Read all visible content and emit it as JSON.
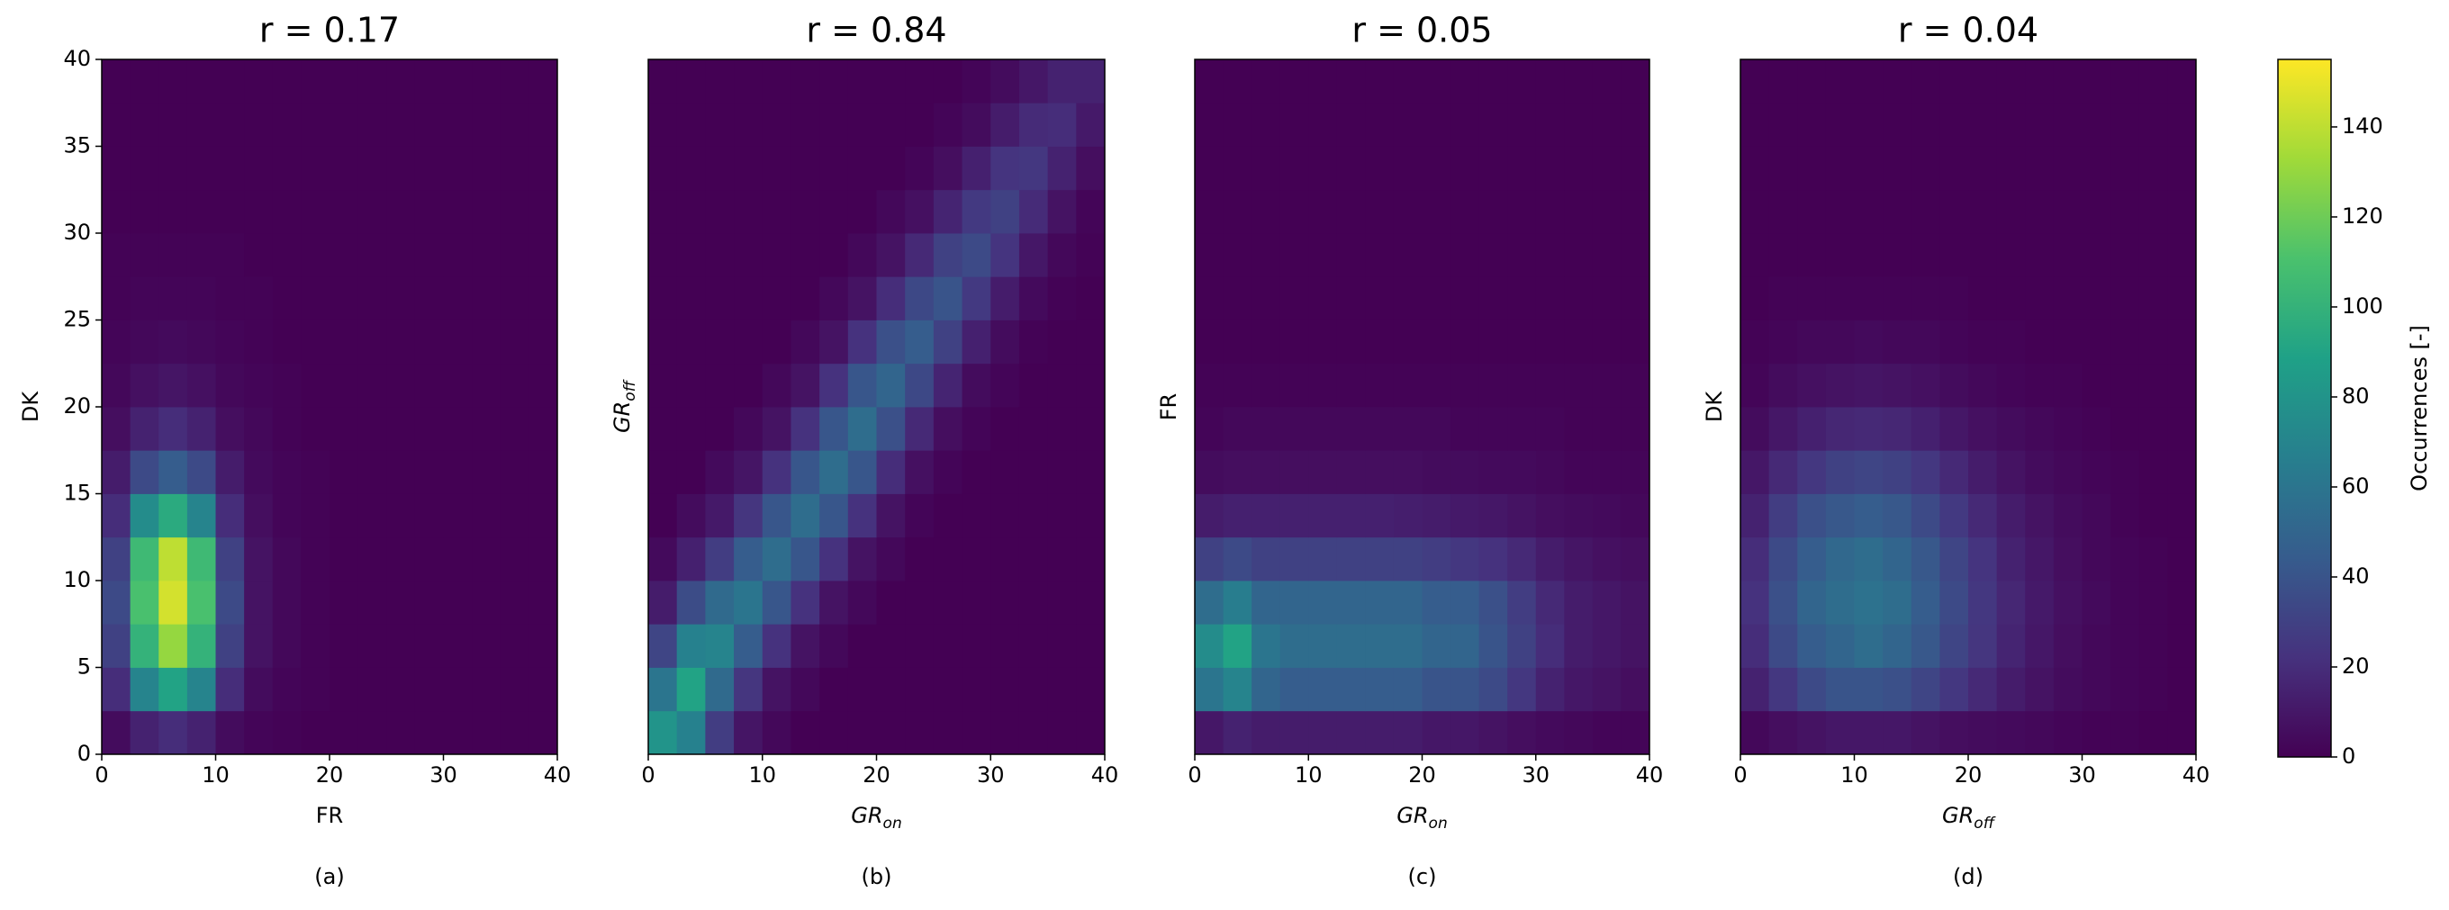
{
  "chart_data": [
    {
      "type": "hist2d",
      "title": "r = 0.17",
      "x_label": "FR",
      "y_label": "DK",
      "caption": "(a)",
      "x_bins": [
        0,
        2.5,
        5,
        7.5,
        10,
        12.5,
        15,
        17.5,
        20,
        22.5,
        25,
        27.5,
        30,
        32.5,
        35,
        37.5,
        40
      ],
      "y_bins": [
        0,
        2.5,
        5,
        7.5,
        10,
        12.5,
        15,
        17.5,
        20,
        22.5,
        25,
        27.5,
        30,
        32.5,
        35,
        37.5,
        40
      ],
      "values": [
        [
          5,
          15,
          20,
          15,
          5,
          2,
          1,
          0,
          0,
          0,
          0,
          0,
          0,
          0,
          0,
          0
        ],
        [
          20,
          70,
          90,
          70,
          20,
          5,
          2,
          1,
          0,
          0,
          0,
          0,
          0,
          0,
          0,
          0
        ],
        [
          30,
          100,
          130,
          100,
          30,
          8,
          3,
          1,
          0,
          0,
          0,
          0,
          0,
          0,
          0,
          0
        ],
        [
          35,
          110,
          145,
          110,
          35,
          8,
          3,
          1,
          0,
          0,
          0,
          0,
          0,
          0,
          0,
          0
        ],
        [
          30,
          105,
          140,
          105,
          30,
          8,
          3,
          1,
          0,
          0,
          0,
          0,
          0,
          0,
          0,
          0
        ],
        [
          20,
          75,
          95,
          70,
          20,
          6,
          2,
          1,
          0,
          0,
          0,
          0,
          0,
          0,
          0,
          0
        ],
        [
          12,
          35,
          45,
          35,
          12,
          4,
          2,
          1,
          0,
          0,
          0,
          0,
          0,
          0,
          0,
          0
        ],
        [
          6,
          15,
          20,
          15,
          6,
          3,
          1,
          0,
          0,
          0,
          0,
          0,
          0,
          0,
          0,
          0
        ],
        [
          3,
          7,
          9,
          7,
          3,
          2,
          1,
          0,
          0,
          0,
          0,
          0,
          0,
          0,
          0,
          0
        ],
        [
          2,
          3,
          4,
          3,
          2,
          1,
          0,
          0,
          0,
          0,
          0,
          0,
          0,
          0,
          0,
          0
        ],
        [
          1,
          2,
          2,
          2,
          1,
          1,
          0,
          0,
          0,
          0,
          0,
          0,
          0,
          0,
          0,
          0
        ],
        [
          1,
          1,
          1,
          1,
          1,
          0,
          0,
          0,
          0,
          0,
          0,
          0,
          0,
          0,
          0,
          0
        ],
        [
          0,
          0,
          0,
          0,
          0,
          0,
          0,
          0,
          0,
          0,
          0,
          0,
          0,
          0,
          0,
          0
        ],
        [
          0,
          0,
          0,
          0,
          0,
          0,
          0,
          0,
          0,
          0,
          0,
          0,
          0,
          0,
          0,
          0
        ],
        [
          0,
          0,
          0,
          0,
          0,
          0,
          0,
          0,
          0,
          0,
          0,
          0,
          0,
          0,
          0,
          0
        ],
        [
          0,
          0,
          0,
          0,
          0,
          0,
          0,
          0,
          0,
          0,
          0,
          0,
          0,
          0,
          0,
          0
        ]
      ],
      "xlim": [
        0,
        40
      ],
      "ylim": [
        0,
        40
      ],
      "xticks": [
        0,
        10,
        20,
        30,
        40
      ],
      "yticks": [
        0,
        5,
        10,
        15,
        20,
        25,
        30,
        35,
        40
      ]
    },
    {
      "type": "hist2d",
      "title": "r = 0.84",
      "x_label": {
        "text": "GR",
        "subscript": "on"
      },
      "y_label": {
        "text": "GR",
        "subscript": "off"
      },
      "caption": "(b)",
      "x_bins": [
        0,
        2.5,
        5,
        7.5,
        10,
        12.5,
        15,
        17.5,
        20,
        22.5,
        25,
        27.5,
        30,
        32.5,
        35,
        37.5,
        40
      ],
      "y_bins": [
        0,
        2.5,
        5,
        7.5,
        10,
        12.5,
        15,
        17.5,
        20,
        22.5,
        25,
        27.5,
        30,
        32.5,
        35,
        37.5,
        40
      ],
      "values": [
        [
          80,
          68,
          28,
          9,
          3,
          0,
          0,
          0,
          0,
          0,
          0,
          0,
          0,
          0,
          0,
          0
        ],
        [
          60,
          90,
          53,
          24,
          8,
          3,
          0,
          0,
          0,
          0,
          0,
          0,
          0,
          0,
          0,
          0
        ],
        [
          32,
          68,
          70,
          45,
          22,
          8,
          3,
          0,
          0,
          0,
          0,
          0,
          0,
          0,
          0,
          0
        ],
        [
          12,
          36,
          53,
          60,
          41,
          22,
          8,
          3,
          0,
          0,
          0,
          0,
          0,
          0,
          0,
          0
        ],
        [
          4,
          14,
          28,
          45,
          55,
          41,
          22,
          8,
          3,
          0,
          0,
          0,
          0,
          0,
          0,
          0
        ],
        [
          0,
          5,
          11,
          24,
          41,
          55,
          41,
          22,
          8,
          2,
          0,
          0,
          0,
          0,
          0,
          0
        ],
        [
          0,
          0,
          4,
          9,
          22,
          41,
          55,
          41,
          20,
          7,
          2,
          0,
          0,
          0,
          0,
          0
        ],
        [
          0,
          0,
          0,
          3,
          8,
          22,
          41,
          55,
          38,
          18,
          6,
          2,
          0,
          0,
          0,
          0
        ],
        [
          0,
          0,
          0,
          0,
          3,
          8,
          22,
          41,
          50,
          34,
          16,
          5,
          2,
          0,
          0,
          0
        ],
        [
          0,
          0,
          0,
          0,
          0,
          3,
          8,
          22,
          38,
          45,
          30,
          14,
          5,
          1,
          0,
          0
        ],
        [
          0,
          0,
          0,
          0,
          0,
          0,
          3,
          8,
          20,
          34,
          40,
          26,
          12,
          4,
          1,
          0
        ],
        [
          0,
          0,
          0,
          0,
          0,
          0,
          0,
          3,
          8,
          18,
          30,
          35,
          23,
          10,
          3,
          1
        ],
        [
          0,
          0,
          0,
          0,
          0,
          0,
          0,
          0,
          3,
          7,
          16,
          26,
          30,
          19,
          8,
          2
        ],
        [
          0,
          0,
          0,
          0,
          0,
          0,
          0,
          0,
          0,
          2,
          6,
          14,
          23,
          25,
          15,
          6
        ],
        [
          0,
          0,
          0,
          0,
          0,
          0,
          0,
          0,
          0,
          0,
          2,
          5,
          12,
          19,
          20,
          11
        ],
        [
          0,
          0,
          0,
          0,
          0,
          0,
          0,
          0,
          0,
          0,
          0,
          2,
          5,
          10,
          15,
          15
        ]
      ],
      "xlim": [
        0,
        40
      ],
      "ylim": [
        0,
        40
      ],
      "xticks": [
        0,
        10,
        20,
        30,
        40
      ]
    },
    {
      "type": "hist2d",
      "title": "r = 0.05",
      "x_label": {
        "text": "GR",
        "subscript": "on"
      },
      "y_label": "FR",
      "caption": "(c)",
      "x_bins": [
        0,
        2.5,
        5,
        7.5,
        10,
        12.5,
        15,
        17.5,
        20,
        22.5,
        25,
        27.5,
        30,
        32.5,
        35,
        37.5,
        40
      ],
      "y_bins": [
        0,
        2.5,
        5,
        7.5,
        10,
        12.5,
        15,
        17.5,
        20,
        22.5,
        25,
        27.5,
        30,
        32.5,
        35,
        37.5,
        40
      ],
      "values": [
        [
          10,
          15,
          12,
          12,
          12,
          12,
          12,
          12,
          10,
          10,
          8,
          6,
          4,
          3,
          2,
          2
        ],
        [
          60,
          70,
          50,
          45,
          45,
          45,
          45,
          45,
          40,
          40,
          35,
          25,
          15,
          10,
          8,
          6
        ],
        [
          75,
          90,
          60,
          55,
          55,
          55,
          55,
          55,
          50,
          50,
          40,
          30,
          20,
          12,
          10,
          8
        ],
        [
          55,
          65,
          50,
          50,
          50,
          50,
          50,
          50,
          45,
          45,
          38,
          28,
          18,
          12,
          10,
          8
        ],
        [
          30,
          35,
          30,
          30,
          30,
          30,
          30,
          30,
          28,
          25,
          22,
          18,
          12,
          9,
          7,
          6
        ],
        [
          12,
          14,
          14,
          14,
          14,
          14,
          14,
          13,
          12,
          11,
          10,
          8,
          6,
          5,
          4,
          3
        ],
        [
          5,
          6,
          6,
          6,
          6,
          6,
          6,
          6,
          5,
          5,
          4,
          4,
          3,
          2,
          2,
          2
        ],
        [
          2,
          3,
          3,
          3,
          3,
          3,
          3,
          3,
          3,
          2,
          2,
          2,
          2,
          1,
          1,
          1
        ],
        [
          1,
          1,
          1,
          1,
          1,
          1,
          1,
          1,
          1,
          1,
          1,
          1,
          1,
          1,
          1,
          1
        ],
        [
          0,
          0,
          0,
          0,
          0,
          0,
          0,
          0,
          0,
          0,
          0,
          0,
          0,
          0,
          0,
          0
        ],
        [
          0,
          0,
          0,
          0,
          0,
          0,
          0,
          0,
          0,
          0,
          0,
          0,
          0,
          0,
          0,
          0
        ],
        [
          0,
          0,
          0,
          0,
          0,
          0,
          0,
          0,
          0,
          0,
          0,
          0,
          0,
          0,
          0,
          0
        ],
        [
          0,
          0,
          0,
          0,
          0,
          0,
          0,
          0,
          0,
          0,
          0,
          0,
          0,
          0,
          0,
          0
        ],
        [
          0,
          0,
          0,
          0,
          0,
          0,
          0,
          0,
          0,
          0,
          0,
          0,
          0,
          0,
          0,
          0
        ],
        [
          0,
          0,
          0,
          0,
          0,
          0,
          0,
          0,
          0,
          0,
          0,
          0,
          0,
          0,
          0,
          0
        ],
        [
          0,
          0,
          0,
          0,
          0,
          0,
          0,
          0,
          0,
          0,
          0,
          0,
          0,
          0,
          0,
          0
        ]
      ],
      "xlim": [
        0,
        40
      ],
      "ylim": [
        0,
        40
      ],
      "xticks": [
        0,
        10,
        20,
        30,
        40
      ]
    },
    {
      "type": "hist2d",
      "title": "r = 0.04",
      "x_label": {
        "text": "GR",
        "subscript": "off"
      },
      "y_label": "DK",
      "caption": "(d)",
      "x_bins": [
        0,
        2.5,
        5,
        7.5,
        10,
        12.5,
        15,
        17.5,
        20,
        22.5,
        25,
        27.5,
        30,
        32.5,
        35,
        37.5,
        40
      ],
      "y_bins": [
        0,
        2.5,
        5,
        7.5,
        10,
        12.5,
        15,
        17.5,
        20,
        22.5,
        25,
        27.5,
        30,
        32.5,
        35,
        37.5,
        40
      ],
      "values": [
        [
          3,
          6,
          8,
          10,
          10,
          10,
          8,
          6,
          5,
          4,
          3,
          2,
          1,
          1,
          0,
          0
        ],
        [
          15,
          25,
          35,
          40,
          40,
          38,
          32,
          25,
          18,
          12,
          8,
          5,
          3,
          2,
          1,
          0
        ],
        [
          20,
          35,
          45,
          50,
          55,
          50,
          42,
          32,
          24,
          16,
          10,
          6,
          3,
          2,
          1,
          0
        ],
        [
          22,
          38,
          50,
          55,
          58,
          55,
          45,
          35,
          25,
          17,
          11,
          7,
          4,
          2,
          1,
          0
        ],
        [
          20,
          35,
          45,
          52,
          55,
          50,
          42,
          32,
          23,
          15,
          10,
          6,
          3,
          2,
          1,
          0
        ],
        [
          15,
          28,
          38,
          42,
          45,
          42,
          35,
          26,
          18,
          12,
          8,
          5,
          3,
          1,
          0,
          0
        ],
        [
          10,
          18,
          25,
          30,
          32,
          30,
          25,
          18,
          12,
          8,
          5,
          3,
          2,
          1,
          0,
          0
        ],
        [
          5,
          10,
          14,
          17,
          18,
          17,
          14,
          10,
          7,
          5,
          3,
          2,
          1,
          0,
          0,
          0
        ],
        [
          2,
          5,
          7,
          8,
          9,
          8,
          7,
          5,
          3,
          2,
          1,
          1,
          0,
          0,
          0,
          0
        ],
        [
          1,
          2,
          3,
          3,
          4,
          3,
          3,
          2,
          1,
          1,
          0,
          0,
          0,
          0,
          0,
          0
        ],
        [
          0,
          1,
          1,
          1,
          1,
          1,
          1,
          1,
          0,
          0,
          0,
          0,
          0,
          0,
          0,
          0
        ],
        [
          0,
          0,
          0,
          0,
          0,
          0,
          0,
          0,
          0,
          0,
          0,
          0,
          0,
          0,
          0,
          0
        ],
        [
          0,
          0,
          0,
          0,
          0,
          0,
          0,
          0,
          0,
          0,
          0,
          0,
          0,
          0,
          0,
          0
        ],
        [
          0,
          0,
          0,
          0,
          0,
          0,
          0,
          0,
          0,
          0,
          0,
          0,
          0,
          0,
          0,
          0
        ],
        [
          0,
          0,
          0,
          0,
          0,
          0,
          0,
          0,
          0,
          0,
          0,
          0,
          0,
          0,
          0,
          0
        ],
        [
          0,
          0,
          0,
          0,
          0,
          0,
          0,
          0,
          0,
          0,
          0,
          0,
          0,
          0,
          0,
          0
        ]
      ],
      "xlim": [
        0,
        40
      ],
      "ylim": [
        0,
        40
      ],
      "xticks": [
        0,
        10,
        20,
        30,
        40
      ]
    }
  ],
  "colorbar": {
    "label": "Occurrences [-]",
    "lim": [
      0,
      155
    ],
    "ticks": [
      0,
      20,
      40,
      60,
      80,
      100,
      120,
      140
    ],
    "colormap": [
      "#440154",
      "#46327e",
      "#365c8d",
      "#277f8e",
      "#1fa187",
      "#4ac16d",
      "#a0da39",
      "#fde725"
    ]
  }
}
